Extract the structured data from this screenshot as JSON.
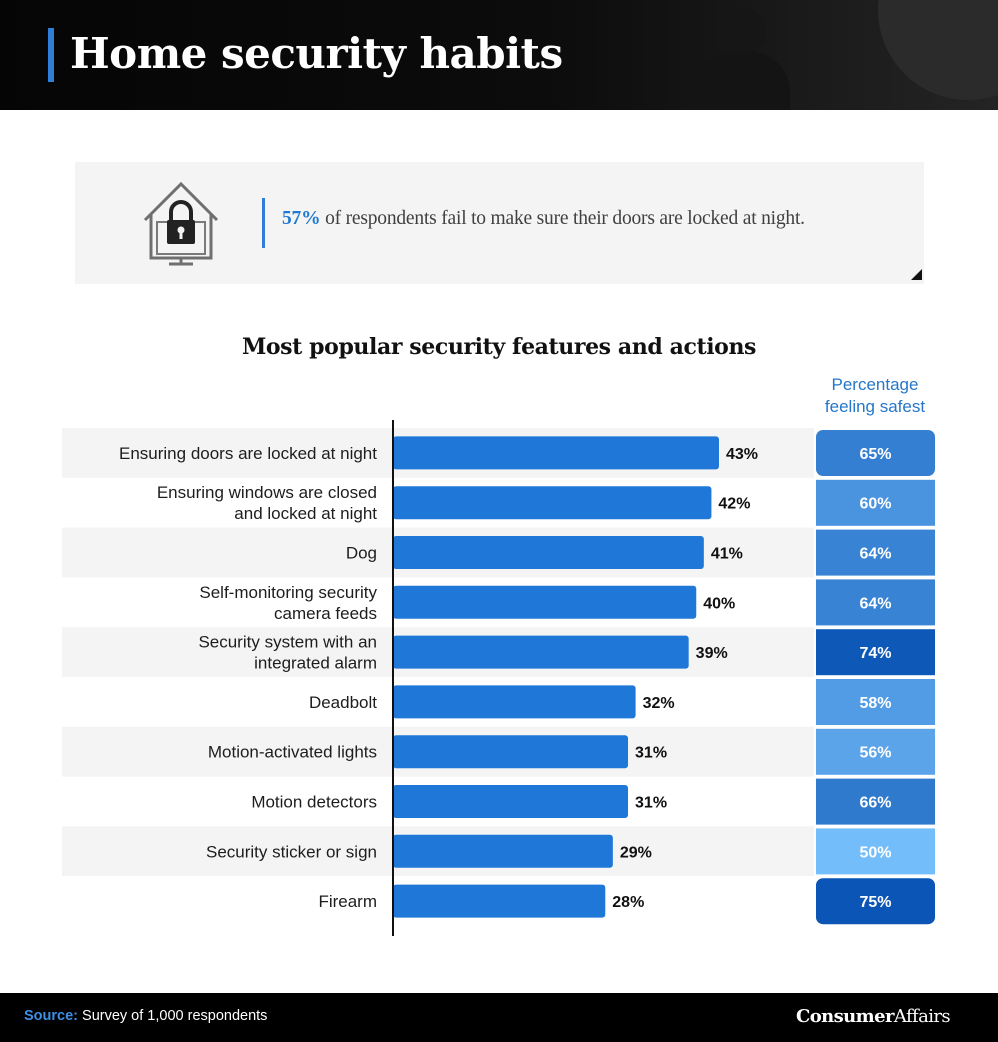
{
  "header": {
    "title": "Home security habits"
  },
  "stat_card": {
    "icon": "house-lock-icon",
    "highlight_value": "57%",
    "text": " of respondents fail to make sure their doors are locked at night."
  },
  "chart_data": {
    "type": "bar",
    "title": "Most popular security features and actions",
    "column_header": "Percentage feeling safest",
    "categories": [
      "Ensuring doors are locked at night",
      "Ensuring windows are closed and locked at night",
      "Dog",
      "Self-monitoring security camera feeds",
      "Security system with an integrated alarm",
      "Deadbolt",
      "Motion-activated lights",
      "Motion detectors",
      "Security sticker or sign",
      "Firearm"
    ],
    "category_lines": [
      [
        "Ensuring doors are locked at night"
      ],
      [
        "Ensuring windows are closed",
        "and locked at night"
      ],
      [
        "Dog"
      ],
      [
        "Self-monitoring security",
        "camera feeds"
      ],
      [
        "Security system with an",
        "integrated alarm"
      ],
      [
        "Deadbolt"
      ],
      [
        "Motion-activated lights"
      ],
      [
        "Motion detectors"
      ],
      [
        "Security sticker or sign"
      ],
      [
        "Firearm"
      ]
    ],
    "series": [
      {
        "values": [
          43,
          42,
          41,
          40,
          39,
          32,
          31,
          31,
          29,
          28
        ],
        "labels": [
          "43%",
          "42%",
          "41%",
          "40%",
          "39%",
          "32%",
          "31%",
          "31%",
          "29%",
          "28%"
        ],
        "color": "#1f78d8"
      },
      {
        "values": [
          65,
          60,
          64,
          64,
          74,
          58,
          56,
          66,
          50,
          75
        ],
        "labels": [
          "65%",
          "60%",
          "64%",
          "64%",
          "74%",
          "58%",
          "56%",
          "66%",
          "50%",
          "75%"
        ]
      }
    ],
    "xlim": [
      0,
      43
    ],
    "orientation": "horizontal",
    "grid": false,
    "legend": "none"
  },
  "colors": {
    "bar": "#1f78d8",
    "accent": "#2f7fd9",
    "row_alt": "#f4f4f4",
    "safest_scale_low": "#74bdfb",
    "safest_scale_high": "#0a55b5"
  },
  "footer": {
    "source_label": "Source:",
    "source_text": " Survey of 1,000 respondents",
    "brand_bold": "Consumer",
    "brand_regular": "Affairs"
  }
}
